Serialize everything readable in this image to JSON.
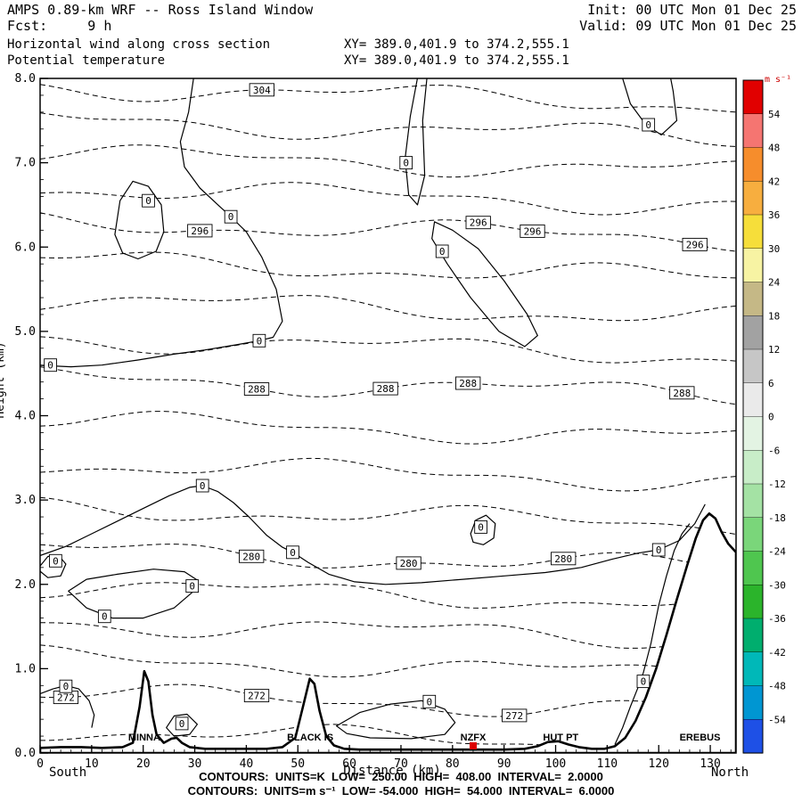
{
  "header": {
    "title": "AMPS 0.89-km WRF -- Ross Island Window",
    "init_label": "Init: 00 UTC Mon 01 Dec 25",
    "fcst_label": "Fcst:     9 h",
    "valid_label": "Valid: 09 UTC Mon 01 Dec 25",
    "field1_name": "Horizontal wind along cross section",
    "field1_xy": "XY= 389.0,401.9 to 374.2,555.1",
    "field2_name": "Potential temperature",
    "field2_xy": "XY= 389.0,401.9 to 374.2,555.1"
  },
  "footer": {
    "xlabel": "Distance (km)",
    "south_label": "South",
    "north_label": "North",
    "contour_info_1": "CONTOURS:  UNITS=K  LOW=  250.00  HIGH=  408.00  INTERVAL=  2.0000",
    "contour_info_2": "CONTOURS:  UNITS=m s⁻¹  LOW= -54.000  HIGH=  54.000  INTERVAL=  6.0000"
  },
  "chart_data": {
    "type": "contour-cross-section",
    "title": "AMPS 0.89-km WRF -- Ross Island Window",
    "xlabel": "Distance (km)",
    "ylabel": "Height (km)",
    "axes": {
      "x_range": [
        0,
        135
      ],
      "y_range": [
        0,
        8
      ],
      "x_ticks": [
        0,
        10,
        20,
        30,
        40,
        50,
        60,
        70,
        80,
        90,
        100,
        110,
        120,
        130
      ],
      "y_ticks": [
        0,
        1,
        2,
        3,
        4,
        5,
        6,
        7,
        8
      ],
      "x_minor_step": 2,
      "y_minor_step": 0.2
    },
    "potential_temperature": {
      "units": "K",
      "low": 250.0,
      "high": 408.0,
      "interval": 2.0,
      "line_style": "dashed",
      "level_height_anchors_km": [
        [
          266,
          -0.68
        ],
        [
          272,
          0.6
        ],
        [
          280,
          2.3
        ],
        [
          288,
          4.35
        ],
        [
          296,
          6.2
        ],
        [
          304,
          7.8
        ],
        [
          312,
          9.4
        ]
      ],
      "labels": [
        {
          "level": 304,
          "x": 43
        },
        {
          "level": 296,
          "x": 31
        },
        {
          "level": 296,
          "x": 85
        },
        {
          "level": 296,
          "x": 95.5
        },
        {
          "level": 296,
          "x": 127
        },
        {
          "level": 288,
          "x": 42
        },
        {
          "level": 288,
          "x": 67
        },
        {
          "level": 288,
          "x": 83
        },
        {
          "level": 288,
          "x": 124.5
        },
        {
          "level": 280,
          "x": 41
        },
        {
          "level": 280,
          "x": 71.5
        },
        {
          "level": 280,
          "x": 101.5
        },
        {
          "level": 272,
          "x": 5
        },
        {
          "level": 272,
          "x": 42
        },
        {
          "level": 272,
          "x": 92
        }
      ]
    },
    "wind": {
      "units": "m s⁻¹",
      "low": -54.0,
      "high": 54.0,
      "interval": 6.0,
      "line_style": "solid",
      "zero_contours": [
        {
          "closed": true,
          "points": [
            [
              14.5,
              6.15
            ],
            [
              15.5,
              6.55
            ],
            [
              18,
              6.78
            ],
            [
              21,
              6.72
            ],
            [
              23.5,
              6.5
            ],
            [
              24,
              6.18
            ],
            [
              22.5,
              5.95
            ],
            [
              19,
              5.86
            ],
            [
              16,
              5.93
            ]
          ]
        },
        {
          "closed": false,
          "points": [
            [
              30,
              8.1
            ],
            [
              28.8,
              7.6
            ],
            [
              27.2,
              7.25
            ],
            [
              28,
              6.95
            ],
            [
              31,
              6.7
            ],
            [
              34.5,
              6.5
            ],
            [
              37,
              6.36
            ],
            [
              40,
              6.18
            ],
            [
              43,
              5.88
            ],
            [
              45.8,
              5.5
            ],
            [
              47,
              5.12
            ],
            [
              45.2,
              4.93
            ],
            [
              42.5,
              4.89
            ],
            [
              38,
              4.84
            ],
            [
              32,
              4.78
            ],
            [
              26,
              4.73
            ],
            [
              19,
              4.66
            ],
            [
              12,
              4.6
            ],
            [
              6,
              4.58
            ],
            [
              -1,
              4.6
            ]
          ]
        },
        {
          "closed": false,
          "points": [
            [
              73.5,
              8.1
            ],
            [
              71.8,
              7.55
            ],
            [
              70.8,
              7.05
            ],
            [
              71.5,
              6.62
            ],
            [
              73.2,
              6.5
            ],
            [
              74.6,
              6.85
            ],
            [
              74.2,
              7.5
            ],
            [
              75.2,
              8.1
            ]
          ]
        },
        {
          "closed": true,
          "points": [
            [
              76.5,
              6.3
            ],
            [
              80,
              6.2
            ],
            [
              85,
              5.98
            ],
            [
              90,
              5.6
            ],
            [
              94.5,
              5.2
            ],
            [
              96.5,
              4.95
            ],
            [
              94,
              4.82
            ],
            [
              89,
              5.0
            ],
            [
              83.5,
              5.4
            ],
            [
              79,
              5.8
            ],
            [
              76,
              6.1
            ]
          ]
        },
        {
          "closed": false,
          "points": [
            [
              112.5,
              8.1
            ],
            [
              114.5,
              7.7
            ],
            [
              117.5,
              7.45
            ],
            [
              120.5,
              7.33
            ],
            [
              123.5,
              7.5
            ],
            [
              122.8,
              7.85
            ],
            [
              122,
              8.1
            ]
          ]
        },
        {
          "closed": false,
          "points": [
            [
              -1,
              2.32
            ],
            [
              5,
              2.45
            ],
            [
              10,
              2.6
            ],
            [
              15,
              2.75
            ],
            [
              20,
              2.9
            ],
            [
              25,
              3.05
            ],
            [
              29,
              3.15
            ],
            [
              31.5,
              3.17
            ],
            [
              34.5,
              3.1
            ],
            [
              37.5,
              2.97
            ],
            [
              40.5,
              2.8
            ],
            [
              44,
              2.58
            ],
            [
              47,
              2.44
            ],
            [
              49,
              2.38
            ],
            [
              52,
              2.26
            ],
            [
              56,
              2.12
            ],
            [
              61,
              2.03
            ],
            [
              67,
              2.0
            ],
            [
              74,
              2.02
            ],
            [
              82,
              2.06
            ],
            [
              90,
              2.1
            ],
            [
              98,
              2.14
            ],
            [
              105,
              2.2
            ],
            [
              111,
              2.3
            ],
            [
              116,
              2.37
            ],
            [
              120,
              2.41
            ],
            [
              124,
              2.52
            ],
            [
              127,
              2.72
            ],
            [
              129,
              2.95
            ]
          ]
        },
        {
          "closed": true,
          "points": [
            [
              83.5,
              2.6
            ],
            [
              84.5,
              2.76
            ],
            [
              86.5,
              2.82
            ],
            [
              88.3,
              2.72
            ],
            [
              88,
              2.55
            ],
            [
              86,
              2.47
            ],
            [
              84,
              2.5
            ]
          ]
        },
        {
          "closed": true,
          "points": [
            [
              -0.5,
              2.18
            ],
            [
              1.5,
              2.33
            ],
            [
              3.5,
              2.35
            ],
            [
              5,
              2.24
            ],
            [
              4,
              2.1
            ],
            [
              1.5,
              2.08
            ]
          ]
        },
        {
          "closed": true,
          "points": [
            [
              5.5,
              1.92
            ],
            [
              9,
              1.72
            ],
            [
              14,
              1.6
            ],
            [
              20,
              1.6
            ],
            [
              26,
              1.72
            ],
            [
              29.8,
              1.92
            ],
            [
              30.5,
              2.05
            ],
            [
              28,
              2.15
            ],
            [
              22,
              2.18
            ],
            [
              15,
              2.12
            ],
            [
              9,
              2.06
            ]
          ]
        },
        {
          "closed": true,
          "points": [
            [
              57.5,
              0.32
            ],
            [
              62,
              0.48
            ],
            [
              68,
              0.58
            ],
            [
              74,
              0.62
            ],
            [
              78.5,
              0.52
            ],
            [
              80.5,
              0.36
            ],
            [
              78.5,
              0.22
            ],
            [
              72,
              0.17
            ],
            [
              64,
              0.18
            ],
            [
              59.5,
              0.23
            ]
          ]
        },
        {
          "closed": true,
          "points": [
            [
              24.5,
              0.3
            ],
            [
              26,
              0.44
            ],
            [
              28.5,
              0.46
            ],
            [
              30.5,
              0.34
            ],
            [
              29,
              0.22
            ],
            [
              26,
              0.2
            ]
          ]
        },
        {
          "closed": false,
          "points": [
            [
              -1,
              0.68
            ],
            [
              2.5,
              0.76
            ],
            [
              5,
              0.8
            ],
            [
              7.5,
              0.76
            ],
            [
              9.5,
              0.62
            ],
            [
              10.5,
              0.45
            ],
            [
              10,
              0.3
            ]
          ]
        },
        {
          "closed": false,
          "points": [
            [
              111.5,
              0.1
            ],
            [
              113,
              0.3
            ],
            [
              114.5,
              0.55
            ],
            [
              116,
              0.78
            ],
            [
              117,
              0.95
            ],
            [
              118.5,
              1.3
            ],
            [
              120,
              1.75
            ],
            [
              121.5,
              2.1
            ],
            [
              123,
              2.4
            ],
            [
              124.5,
              2.6
            ],
            [
              126,
              2.72
            ]
          ]
        }
      ],
      "labels": [
        {
          "x": 71,
          "h": 7.0
        },
        {
          "x": 118,
          "h": 7.45
        },
        {
          "x": 21,
          "h": 6.55
        },
        {
          "x": 37,
          "h": 6.36
        },
        {
          "x": 78,
          "h": 5.95
        },
        {
          "x": 42.5,
          "h": 4.89
        },
        {
          "x": 2,
          "h": 4.6
        },
        {
          "x": 31.5,
          "h": 3.17
        },
        {
          "x": 49,
          "h": 2.38
        },
        {
          "x": 85.5,
          "h": 2.68
        },
        {
          "x": 120,
          "h": 2.41
        },
        {
          "x": 3,
          "h": 2.28
        },
        {
          "x": 29.5,
          "h": 1.98
        },
        {
          "x": 12.5,
          "h": 1.62
        },
        {
          "x": 5,
          "h": 0.79
        },
        {
          "x": 75.5,
          "h": 0.61
        },
        {
          "x": 27.5,
          "h": 0.35
        },
        {
          "x": 117,
          "h": 0.85
        }
      ]
    },
    "terrain": {
      "points": [
        [
          0,
          0.06
        ],
        [
          4,
          0.07
        ],
        [
          8,
          0.07
        ],
        [
          12,
          0.06
        ],
        [
          16,
          0.07
        ],
        [
          18,
          0.12
        ],
        [
          19.3,
          0.55
        ],
        [
          20.2,
          0.97
        ],
        [
          21,
          0.85
        ],
        [
          21.8,
          0.45
        ],
        [
          22.6,
          0.22
        ],
        [
          24,
          0.12
        ],
        [
          25.5,
          0.17
        ],
        [
          26.5,
          0.18
        ],
        [
          27.5,
          0.12
        ],
        [
          29,
          0.07
        ],
        [
          32,
          0.05
        ],
        [
          36,
          0.05
        ],
        [
          40,
          0.05
        ],
        [
          44,
          0.05
        ],
        [
          47,
          0.07
        ],
        [
          49.5,
          0.18
        ],
        [
          51,
          0.55
        ],
        [
          52.3,
          0.88
        ],
        [
          53.2,
          0.82
        ],
        [
          54.2,
          0.5
        ],
        [
          55.5,
          0.2
        ],
        [
          57,
          0.09
        ],
        [
          59,
          0.05
        ],
        [
          62,
          0.04
        ],
        [
          66,
          0.04
        ],
        [
          70,
          0.04
        ],
        [
          74,
          0.04
        ],
        [
          78,
          0.04
        ],
        [
          82,
          0.04
        ],
        [
          86,
          0.04
        ],
        [
          90,
          0.04
        ],
        [
          94,
          0.05
        ],
        [
          96.5,
          0.08
        ],
        [
          98.5,
          0.13
        ],
        [
          100.5,
          0.14
        ],
        [
          102.5,
          0.1
        ],
        [
          104.5,
          0.07
        ],
        [
          107,
          0.05
        ],
        [
          109.5,
          0.05
        ],
        [
          111.5,
          0.08
        ],
        [
          113.5,
          0.18
        ],
        [
          115.5,
          0.38
        ],
        [
          117.5,
          0.66
        ],
        [
          119.5,
          1.0
        ],
        [
          121.5,
          1.4
        ],
        [
          123.5,
          1.82
        ],
        [
          125.5,
          2.22
        ],
        [
          127.2,
          2.55
        ],
        [
          128.6,
          2.76
        ],
        [
          129.8,
          2.84
        ],
        [
          131,
          2.78
        ],
        [
          132.2,
          2.62
        ],
        [
          133.5,
          2.48
        ],
        [
          135,
          2.38
        ]
      ],
      "landmarks": [
        {
          "name": "MINNA",
          "x": 20.2
        },
        {
          "name": "BLACK IS",
          "x": 52.4
        },
        {
          "name": "NZFX",
          "x": 84,
          "marker": "square",
          "marker_color": "#dd0000"
        },
        {
          "name": "HUT PT",
          "x": 101
        },
        {
          "name": "EREBUS",
          "x": 128
        }
      ]
    },
    "colorbar": {
      "title": "m s⁻¹",
      "title_color": "#cc0000",
      "tick_values": [
        54,
        48,
        42,
        36,
        30,
        24,
        18,
        12,
        6,
        0,
        -6,
        -12,
        -18,
        -24,
        -30,
        -36,
        -42,
        -48,
        -54
      ],
      "segment_colors_top_to_bottom": [
        "#e10000",
        "#f57571",
        "#f68d2c",
        "#f7ae3f",
        "#f6de3a",
        "#f7f3a3",
        "#c5b886",
        "#a2a2a2",
        "#c6c6c6",
        "#eaeaea",
        "#e3f3e3",
        "#c8edc8",
        "#a4e2a4",
        "#7ad67a",
        "#4fc64f",
        "#2bb42b",
        "#00ae6e",
        "#00b8b8",
        "#0096d2",
        "#1e50e6"
      ]
    }
  }
}
